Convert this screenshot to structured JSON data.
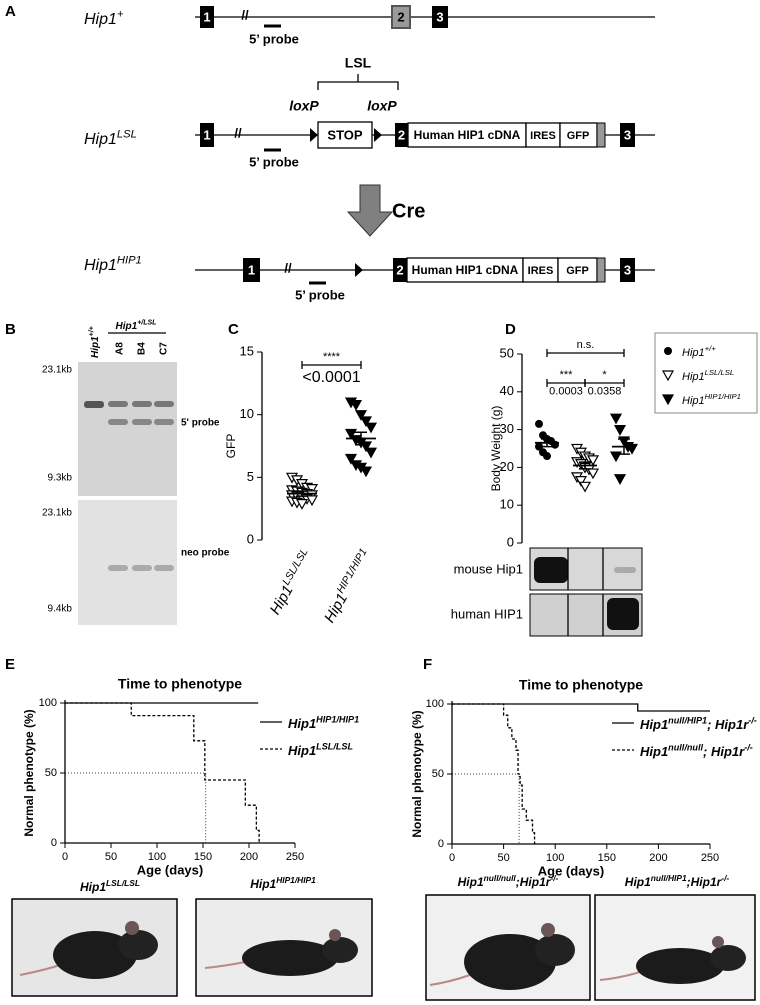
{
  "panel_a": {
    "letter": "A",
    "rows": [
      {
        "label": [
          {
            "t": "Hip1"
          },
          {
            "sup": "+"
          }
        ],
        "exons": [
          "1",
          "2",
          "3"
        ],
        "break": "//",
        "probe": "5’ probe"
      },
      {
        "label": [
          {
            "t": "Hip1"
          },
          {
            "sup": "LSL"
          }
        ],
        "exons": [
          "1",
          "2",
          "3"
        ],
        "break": "//",
        "probe": "5’ probe",
        "cassette": "LSL",
        "loxp": [
          "loxP",
          "loxP"
        ],
        "stop": "STOP",
        "cdna": "Human HIP1 cDNA",
        "ires": "IRES",
        "gfp": "GFP"
      },
      {
        "label": [
          {
            "t": "Hip1"
          },
          {
            "sup": "HIP1"
          }
        ],
        "exons": [
          "1",
          "2",
          "3"
        ],
        "break": "//",
        "probe": "5’ probe",
        "cdna": "Human HIP1 cDNA",
        "ires": "IRES",
        "gfp": "GFP"
      }
    ],
    "recombinase": "Cre"
  },
  "panel_b": {
    "letter": "B",
    "wt_lane": [
      {
        "t": "Hip1"
      },
      {
        "sup": "+/+"
      }
    ],
    "het_header": [
      {
        "t": "Hip1"
      },
      {
        "sup": "+/LSL"
      }
    ],
    "lanes": [
      "A8",
      "B4",
      "C7"
    ],
    "blots": [
      {
        "probe": "5' probe",
        "markers": [
          "23.1kb",
          "9.3kb"
        ]
      },
      {
        "probe": "neo probe",
        "markers": [
          "23.1kb",
          "9.4kb"
        ]
      }
    ]
  },
  "chart_data": [
    {
      "type": "dot",
      "letter": "C",
      "ylabel": "GFP",
      "ylim": [
        0,
        15
      ],
      "yticks": [
        0,
        5,
        10,
        15
      ],
      "groups": [
        {
          "label": [
            {
              "t": "Hip1"
            },
            {
              "sup": "LSL/LSL"
            }
          ],
          "marker": "triangle-down-open",
          "color": "#000000",
          "values": [
            5.0,
            4.8,
            4.5,
            4.2,
            4.1,
            4.0,
            3.9,
            3.8,
            3.7,
            3.6,
            3.6,
            3.5,
            3.4,
            3.3,
            3.2,
            3.1,
            3.0,
            2.9
          ],
          "mean": 3.7,
          "sem": 0.2
        },
        {
          "label": [
            {
              "t": "Hip1"
            },
            {
              "sup": "HIP1/HIP1"
            }
          ],
          "marker": "triangle-down",
          "color": "#000000",
          "values": [
            11.0,
            10.8,
            10.0,
            9.5,
            9.0,
            8.5,
            8.0,
            7.8,
            7.5,
            7.0,
            6.5,
            6.0,
            5.8,
            5.5
          ],
          "mean": 8.1,
          "sem": 0.5
        }
      ],
      "significance": [
        {
          "groups_compared": [
            0,
            1
          ],
          "stars": "****",
          "p": "<0.0001"
        }
      ]
    },
    {
      "type": "dot",
      "letter": "D",
      "ylabel": "Body  Weight (g)",
      "ylim": [
        0,
        50
      ],
      "yticks": [
        0,
        10,
        20,
        30,
        40,
        50
      ],
      "legend": "right",
      "groups": [
        {
          "label": [
            {
              "t": "Hip1"
            },
            {
              "sup": "+/+"
            }
          ],
          "marker": "circle",
          "color": "#000000",
          "values": [
            31.5,
            28.5,
            27.5,
            27,
            26,
            25.5,
            24,
            23
          ],
          "mean": 26.5,
          "sem": 1.0
        },
        {
          "label": [
            {
              "t": "Hip1"
            },
            {
              "sup": "LSL/LSL"
            }
          ],
          "marker": "triangle-down-open",
          "color": "#000000",
          "values": [
            25,
            24,
            23,
            22.5,
            22,
            21.5,
            21,
            20,
            19.5,
            18.5,
            17.5,
            16.5,
            15
          ],
          "mean": 20.5,
          "sem": 0.9
        },
        {
          "label": [
            {
              "t": "Hip1"
            },
            {
              "sup": "HIP1/HIP1"
            }
          ],
          "marker": "triangle-down",
          "color": "#000000",
          "values": [
            33,
            30,
            27,
            25.5,
            25,
            23,
            17
          ],
          "mean": 25.5,
          "sem": 2.0
        }
      ],
      "significance": [
        {
          "groups_compared": [
            0,
            2
          ],
          "stars": "n.s."
        },
        {
          "groups_compared": [
            0,
            1
          ],
          "stars": "***",
          "p": "0.0003"
        },
        {
          "groups_compared": [
            1,
            2
          ],
          "stars": "*",
          "p": "0.0358"
        }
      ],
      "blots": [
        "mouse Hip1",
        "human HIP1"
      ]
    },
    {
      "type": "step",
      "letter": "E",
      "title": "Time to phenotype",
      "xlabel": "Age (days)",
      "ylabel": "Normal phenotype (%)",
      "xlim": [
        0,
        250
      ],
      "xticks": [
        0,
        50,
        100,
        150,
        200,
        250
      ],
      "ylim": [
        0,
        100
      ],
      "yticks": [
        0,
        50,
        100
      ],
      "legend": "upper right",
      "series": [
        {
          "name": [
            {
              "t": "Hip1"
            },
            {
              "sup": "HIP1/HIP1"
            }
          ],
          "color": "#000000",
          "dashed": false,
          "x": [
            0,
            210
          ],
          "values": [
            100,
            100
          ]
        },
        {
          "name": [
            {
              "t": "Hip1"
            },
            {
              "sup": "LSL/LSL"
            }
          ],
          "color": "#000000",
          "dashed": true,
          "x": [
            0,
            72,
            140,
            152,
            196,
            208,
            211
          ],
          "values": [
            100,
            91,
            73,
            45,
            27,
            9,
            0
          ],
          "median": {
            "x": 153,
            "y": 50
          }
        }
      ]
    },
    {
      "type": "step",
      "letter": "F",
      "title": "Time to phenotype",
      "xlabel": "Age (days)",
      "ylabel": "Normal phenotype (%)",
      "xlim": [
        0,
        250
      ],
      "xticks": [
        0,
        50,
        100,
        150,
        200,
        250
      ],
      "ylim": [
        0,
        100
      ],
      "yticks": [
        0,
        50,
        100
      ],
      "legend": "upper right",
      "series": [
        {
          "name": [
            {
              "t": "Hip1"
            },
            {
              "sup": "null/HIP1"
            },
            {
              "t": "; Hip1r"
            },
            {
              "sup": "-/-"
            }
          ],
          "color": "#000000",
          "dashed": false,
          "x": [
            0,
            180,
            250
          ],
          "values": [
            100,
            95,
            95
          ]
        },
        {
          "name": [
            {
              "t": "Hip1"
            },
            {
              "sup": "null/null"
            },
            {
              "t": "; Hip1r"
            },
            {
              "sup": "-/-"
            }
          ],
          "color": "#000000",
          "dashed": true,
          "x": [
            0,
            50,
            54,
            58,
            62,
            64,
            66,
            68,
            72,
            78,
            80
          ],
          "values": [
            100,
            92,
            83,
            75,
            67,
            50,
            42,
            25,
            17,
            8,
            0
          ],
          "median": {
            "x": 65,
            "y": 50
          }
        }
      ]
    }
  ],
  "photos": [
    {
      "caption": [
        {
          "t": "Hip1"
        },
        {
          "sup": "LSL/LSL"
        }
      ]
    },
    {
      "caption": [
        {
          "t": "Hip1"
        },
        {
          "sup": "HIP1/HIP1"
        }
      ]
    },
    {
      "caption": [
        {
          "t": "Hip1"
        },
        {
          "sup": "null/null"
        },
        {
          "t": ";Hip1r"
        },
        {
          "sup": "-/-"
        }
      ]
    },
    {
      "caption": [
        {
          "t": "Hip1"
        },
        {
          "sup": "null/HIP1"
        },
        {
          "t": ";Hip1r"
        },
        {
          "sup": "-/-"
        }
      ]
    }
  ]
}
